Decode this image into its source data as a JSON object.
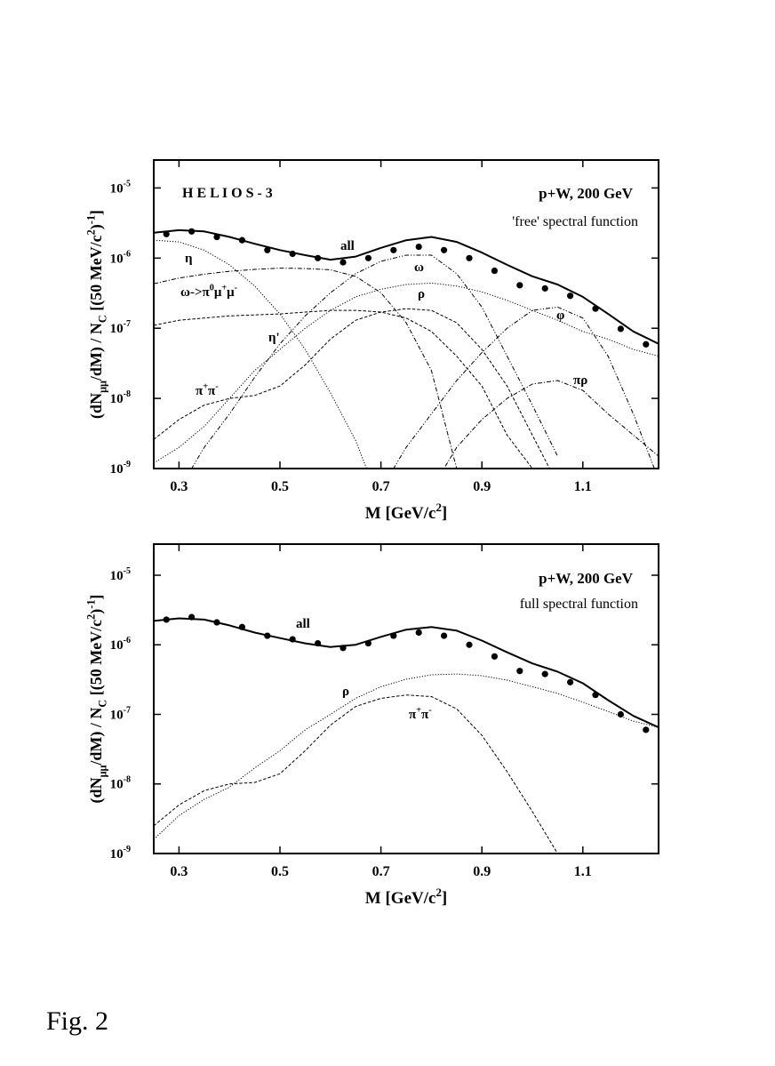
{
  "chart_data": [
    {
      "type": "line",
      "log_y": true,
      "annotations": [
        {
          "text": "H E L I O S - 3"
        },
        {
          "text": "p+W, 200 GeV"
        },
        {
          "text": "'free' spectral function"
        }
      ],
      "x_label": [
        {
          "text": "M [GeV/c"
        },
        {
          "sup": "2"
        },
        {
          "text": "]"
        }
      ],
      "y_label": [
        {
          "text": "(dN"
        },
        {
          "sub": "μμ"
        },
        {
          "text": "/dM) / N"
        },
        {
          "sub": "C"
        },
        {
          "text": "  [(50 MeV/c"
        },
        {
          "sup": "2"
        },
        {
          "text": ")"
        },
        {
          "sup": "-1"
        },
        {
          "text": "]"
        }
      ],
      "xlim": [
        0.25,
        1.25
      ],
      "xticks": [
        0.3,
        0.5,
        0.7,
        0.9,
        1.1
      ],
      "ylim": [
        1e-09,
        2.5e-05
      ],
      "yticks": [
        {
          "value": 1e-09,
          "label": "10",
          "exp": "-9"
        },
        {
          "value": 1e-08,
          "label": "10",
          "exp": "-8"
        },
        {
          "value": 1e-07,
          "label": "10",
          "exp": "-7"
        },
        {
          "value": 1e-06,
          "label": "10",
          "exp": "-6"
        },
        {
          "value": 1e-05,
          "label": "10",
          "exp": "-5"
        }
      ],
      "x": [
        0.25,
        0.3,
        0.35,
        0.4,
        0.45,
        0.5,
        0.55,
        0.6,
        0.65,
        0.7,
        0.75,
        0.8,
        0.85,
        0.9,
        0.95,
        1.0,
        1.05,
        1.1,
        1.15,
        1.2,
        1.25
      ],
      "series": [
        {
          "name": [
            {
              "text": "all"
            }
          ],
          "color": "#000",
          "dash": "solid",
          "width": 2,
          "values": [
            2.3e-06,
            2.5e-06,
            2.4e-06,
            2e-06,
            1.6e-06,
            1.3e-06,
            1.1e-06,
            9.5e-07,
            1.05e-06,
            1.4e-06,
            1.8e-06,
            2e-06,
            1.7e-06,
            1.2e-06,
            8e-07,
            5.5e-07,
            4.2e-07,
            2.8e-07,
            1.6e-07,
            9e-08,
            6e-08
          ]
        },
        {
          "name": [
            {
              "text": "η"
            }
          ],
          "color": "#000",
          "dash": "dotted",
          "width": 1,
          "values": [
            1.8e-06,
            1.7e-06,
            1.3e-06,
            8e-07,
            4e-07,
            1.6e-07,
            5e-08,
            1.2e-08,
            2.5e-09,
            3e-10,
            null,
            null,
            null,
            null,
            null,
            null,
            null,
            null,
            null,
            null,
            null
          ]
        },
        {
          "name": [
            {
              "text": "ω->π"
            },
            {
              "sup": "0"
            },
            {
              "text": "μ"
            },
            {
              "sup": "+"
            },
            {
              "text": "μ"
            },
            {
              "sup": "-"
            }
          ],
          "color": "#000",
          "dash": "dashdot",
          "width": 1,
          "values": [
            4.3e-07,
            5.2e-07,
            5.9e-07,
            6.5e-07,
            6.9e-07,
            7.2e-07,
            7.1e-07,
            6.8e-07,
            5.5e-07,
            3.2e-07,
            1.2e-07,
            2.5e-08,
            1e-09,
            null,
            null,
            null,
            null,
            null,
            null,
            null,
            null
          ]
        },
        {
          "name": [
            {
              "text": "η'"
            }
          ],
          "color": "#000",
          "dash": "dashed",
          "width": 1,
          "values": [
            1.1e-07,
            1.3e-07,
            1.4e-07,
            1.5e-07,
            1.55e-07,
            1.6e-07,
            1.7e-07,
            1.8e-07,
            1.8e-07,
            1.7e-07,
            1.4e-07,
            9e-08,
            4e-08,
            1.5e-08,
            3e-09,
            1e-09,
            null,
            null,
            null,
            null,
            null
          ]
        },
        {
          "name": [
            {
              "text": "π"
            },
            {
              "sup": "+"
            },
            {
              "text": "π"
            },
            {
              "sup": "-"
            }
          ],
          "color": "#000",
          "dash": "dashed",
          "width": 1,
          "values": [
            2.6e-09,
            5e-09,
            8e-09,
            1e-08,
            1.1e-08,
            1.5e-08,
            3e-08,
            7e-08,
            1.3e-07,
            1.7e-07,
            1.9e-07,
            1.8e-07,
            1.2e-07,
            5e-08,
            1.5e-08,
            3e-09,
            6e-10,
            null,
            null,
            null,
            null
          ]
        },
        {
          "name": [
            {
              "text": "ω"
            }
          ],
          "color": "#000",
          "dash": "dashdotdot",
          "width": 1,
          "values": [
            null,
            5e-10,
            2e-09,
            6e-09,
            2e-08,
            6e-08,
            1.5e-07,
            3.2e-07,
            6e-07,
            9e-07,
            1.1e-06,
            1.1e-06,
            6e-07,
            2e-07,
            4e-08,
            8e-09,
            1.5e-09,
            null,
            null,
            null,
            null
          ]
        },
        {
          "name": [
            {
              "text": "ρ"
            }
          ],
          "color": "#000",
          "dash": "dotted",
          "width": 1,
          "values": [
            1.2e-09,
            2e-09,
            4e-09,
            1e-08,
            2.5e-08,
            5e-08,
            1e-07,
            1.8e-07,
            2.8e-07,
            3.6e-07,
            4.2e-07,
            4.4e-07,
            4e-07,
            3.3e-07,
            2.5e-07,
            1.8e-07,
            1.3e-07,
            9e-08,
            7e-08,
            5e-08,
            4e-08
          ]
        },
        {
          "name": [
            {
              "text": "φ"
            }
          ],
          "color": "#000",
          "dash": "dashdotdot",
          "width": 1,
          "values": [
            null,
            null,
            null,
            null,
            null,
            null,
            null,
            null,
            null,
            5e-10,
            2e-09,
            6e-09,
            1.8e-08,
            4.5e-08,
            1e-07,
            1.8e-07,
            2e-07,
            1.4e-07,
            4e-08,
            6e-09,
            7e-10
          ]
        },
        {
          "name": [
            {
              "text": "πρ"
            }
          ],
          "color": "#000",
          "dash": "dashdot",
          "width": 1,
          "values": [
            null,
            null,
            null,
            null,
            null,
            null,
            null,
            null,
            null,
            null,
            null,
            5e-10,
            2e-09,
            5e-09,
            1e-08,
            1.6e-08,
            1.8e-08,
            1.3e-08,
            6e-09,
            3e-09,
            1.5e-09
          ]
        }
      ],
      "points": {
        "x": [
          0.275,
          0.325,
          0.375,
          0.425,
          0.475,
          0.525,
          0.575,
          0.625,
          0.675,
          0.725,
          0.775,
          0.825,
          0.875,
          0.925,
          0.975,
          1.025,
          1.075,
          1.125,
          1.175,
          1.225
        ],
        "values": [
          2.2e-06,
          2.4e-06,
          2e-06,
          1.8e-06,
          1.3e-06,
          1.15e-06,
          1e-06,
          8.7e-07,
          1e-06,
          1.3e-06,
          1.45e-06,
          1.3e-06,
          1e-06,
          6.6e-07,
          4.1e-07,
          3.7e-07,
          2.9e-07,
          1.9e-07,
          9.8e-08,
          5.9e-08
        ],
        "color": "#000"
      }
    },
    {
      "type": "line",
      "log_y": true,
      "annotations": [
        {
          "text": "p+W, 200 GeV"
        },
        {
          "text": "full spectral function"
        }
      ],
      "x_label": [
        {
          "text": "M [GeV/c"
        },
        {
          "sup": "2"
        },
        {
          "text": "]"
        }
      ],
      "y_label": [
        {
          "text": "(dN"
        },
        {
          "sub": "μμ"
        },
        {
          "text": "/dM) / N"
        },
        {
          "sub": "C"
        },
        {
          "text": "  [(50 MeV/c"
        },
        {
          "sup": "2"
        },
        {
          "text": ")"
        },
        {
          "sup": "-1"
        },
        {
          "text": "]"
        }
      ],
      "xlim": [
        0.25,
        1.25
      ],
      "xticks": [
        0.3,
        0.5,
        0.7,
        0.9,
        1.1
      ],
      "ylim": [
        1e-09,
        2.8e-05
      ],
      "yticks": [
        {
          "value": 1e-09,
          "label": "10",
          "exp": "-9"
        },
        {
          "value": 1e-08,
          "label": "10",
          "exp": "-8"
        },
        {
          "value": 1e-07,
          "label": "10",
          "exp": "-7"
        },
        {
          "value": 1e-06,
          "label": "10",
          "exp": "-6"
        },
        {
          "value": 1e-05,
          "label": "10",
          "exp": "-5"
        }
      ],
      "x": [
        0.25,
        0.3,
        0.35,
        0.4,
        0.45,
        0.5,
        0.55,
        0.6,
        0.65,
        0.7,
        0.75,
        0.8,
        0.85,
        0.9,
        0.95,
        1.0,
        1.05,
        1.1,
        1.15,
        1.2,
        1.25
      ],
      "series": [
        {
          "name": [
            {
              "text": "all"
            }
          ],
          "color": "#000",
          "dash": "solid",
          "width": 2,
          "values": [
            2.2e-06,
            2.4e-06,
            2.3e-06,
            1.9e-06,
            1.5e-06,
            1.25e-06,
            1.05e-06,
            9.3e-07,
            1e-06,
            1.3e-06,
            1.65e-06,
            1.8e-06,
            1.6e-06,
            1.15e-06,
            7.8e-07,
            5.4e-07,
            4.1e-07,
            2.8e-07,
            1.6e-07,
            9.5e-08,
            6.5e-08
          ]
        },
        {
          "name": [
            {
              "text": "ρ"
            }
          ],
          "color": "#000",
          "dash": "dotted",
          "width": 1,
          "values": [
            1.6e-09,
            3.5e-09,
            6e-09,
            9e-09,
            1.7e-08,
            3e-08,
            6e-08,
            1e-07,
            1.7e-07,
            2.5e-07,
            3.2e-07,
            3.7e-07,
            3.8e-07,
            3.6e-07,
            3.1e-07,
            2.5e-07,
            2e-07,
            1.5e-07,
            1.1e-07,
            8e-08,
            6.5e-08
          ]
        },
        {
          "name": [
            {
              "text": "π"
            },
            {
              "sup": "+"
            },
            {
              "text": "π"
            },
            {
              "sup": "-"
            }
          ],
          "color": "#000",
          "dash": "dashed",
          "width": 1,
          "values": [
            2.5e-09,
            5e-09,
            8e-09,
            1e-08,
            1.05e-08,
            1.4e-08,
            3e-08,
            7e-08,
            1.3e-07,
            1.7e-07,
            1.9e-07,
            1.8e-07,
            1.2e-07,
            5e-08,
            1.5e-08,
            4e-09,
            1e-09,
            null,
            null,
            null,
            null
          ]
        }
      ],
      "points": {
        "x": [
          0.275,
          0.325,
          0.375,
          0.425,
          0.475,
          0.525,
          0.575,
          0.625,
          0.675,
          0.725,
          0.775,
          0.825,
          0.875,
          0.925,
          0.975,
          1.025,
          1.075,
          1.125,
          1.175,
          1.225
        ],
        "values": [
          2.3e-06,
          2.5e-06,
          2.1e-06,
          1.8e-06,
          1.35e-06,
          1.2e-06,
          1.05e-06,
          9e-07,
          1.05e-06,
          1.35e-06,
          1.5e-06,
          1.35e-06,
          1e-06,
          6.8e-07,
          4.2e-07,
          3.8e-07,
          2.9e-07,
          1.9e-07,
          1e-07,
          6e-08
        ],
        "color": "#000"
      }
    }
  ],
  "caption": "Fig. 2"
}
